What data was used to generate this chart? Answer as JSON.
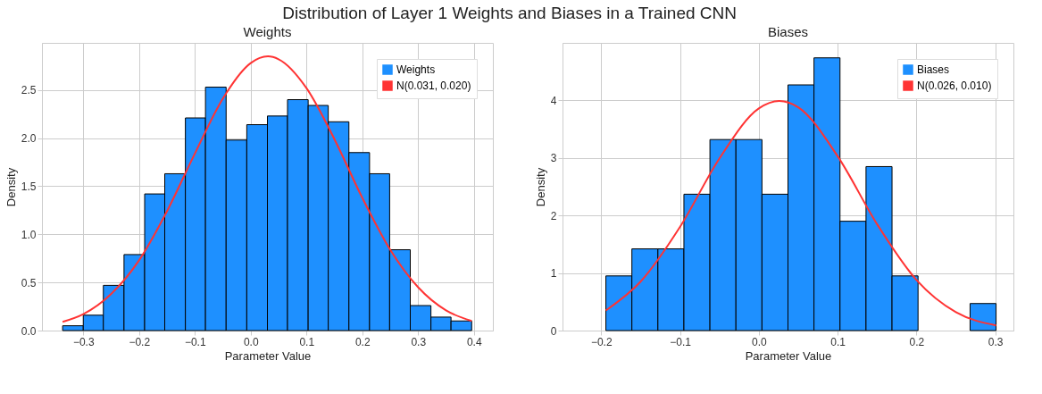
{
  "chart_data": [
    {
      "type": "histogram",
      "title": "Weights",
      "annotations": [
        "Distribution of Layer 1 Weights and Biases in a Trained CNN"
      ],
      "xlabel": "Parameter Value",
      "ylabel": "Density",
      "bins": [
        -0.337,
        -0.3,
        -0.264,
        -0.227,
        -0.19,
        -0.154,
        -0.117,
        -0.081,
        -0.044,
        -0.007,
        0.03,
        0.066,
        0.103,
        0.139,
        0.176,
        0.213,
        0.249,
        0.286,
        0.323,
        0.359,
        0.396
      ],
      "series": [
        {
          "name": "Weights",
          "color": "#1e90ff",
          "values": [
            0.05,
            0.16,
            0.47,
            0.79,
            1.42,
            1.63,
            2.21,
            2.53,
            1.98,
            2.14,
            2.23,
            2.4,
            2.34,
            2.17,
            1.85,
            1.63,
            0.84,
            0.26,
            0.14,
            0.1
          ]
        },
        {
          "name": "N(0.031, 0.020)",
          "type": "line",
          "color": "#ff3333",
          "x": [
            -0.337,
            -0.3,
            -0.25,
            -0.2,
            -0.15,
            -0.1,
            -0.05,
            0,
            0.031,
            0.05,
            0.1,
            0.15,
            0.2,
            0.25,
            0.3,
            0.35,
            0.396
          ],
          "values": [
            0.09,
            0.17,
            0.38,
            0.73,
            1.24,
            1.84,
            2.41,
            2.78,
            2.85,
            2.82,
            2.52,
            1.99,
            1.38,
            0.84,
            0.45,
            0.21,
            0.1
          ]
        }
      ],
      "xlim": [
        -0.374,
        0.434
      ],
      "xticks": [
        {
          "value": -0.3,
          "label": "−0.3"
        },
        {
          "value": -0.2,
          "label": "−0.2"
        },
        {
          "value": -0.1,
          "label": "−0.1"
        },
        {
          "value": 0,
          "label": "0.0"
        },
        0.1,
        0.2,
        0.3,
        0.4
      ],
      "ylim": [
        0,
        2.99
      ],
      "yticks": [
        {
          "value": 0,
          "label": "0.0"
        },
        0.5,
        {
          "value": 1,
          "label": "1.0"
        },
        1.5,
        {
          "value": 2,
          "label": "2.0"
        },
        2.5
      ],
      "grid": true,
      "legend": "top right"
    },
    {
      "type": "histogram",
      "title": "Biases",
      "xlabel": "Parameter Value",
      "ylabel": "Density",
      "bins": [
        -0.194,
        -0.161,
        -0.128,
        -0.095,
        -0.062,
        -0.029,
        0.004,
        0.037,
        0.07,
        0.103,
        0.136,
        0.169,
        0.202,
        0.235,
        0.268,
        0.301
      ],
      "series": [
        {
          "name": "Biases",
          "color": "#1e90ff",
          "values": [
            0.95,
            1.42,
            1.42,
            2.37,
            3.32,
            3.32,
            2.37,
            4.27,
            4.74,
            1.9,
            2.85,
            0.95,
            null,
            null,
            0.47
          ]
        },
        {
          "name": "N(0.026, 0.010)",
          "type": "line",
          "color": "#ff3333",
          "x": [
            -0.194,
            -0.15,
            -0.1,
            -0.05,
            0,
            0.026,
            0.05,
            0.1,
            0.15,
            0.2,
            0.25,
            0.301
          ],
          "values": [
            0.35,
            0.85,
            1.8,
            2.99,
            3.86,
            3.99,
            3.88,
            3.03,
            1.85,
            0.88,
            0.32,
            0.09
          ]
        }
      ],
      "xlim": [
        -0.249,
        0.323
      ],
      "xticks": [
        {
          "value": -0.2,
          "label": "−0.2"
        },
        {
          "value": -0.1,
          "label": "−0.1"
        },
        {
          "value": 0,
          "label": "0.0"
        },
        0.1,
        0.2,
        0.3
      ],
      "ylim": [
        0,
        5.0
      ],
      "yticks": [
        0,
        1,
        2,
        3,
        4
      ],
      "grid": true,
      "legend": "top right"
    }
  ]
}
